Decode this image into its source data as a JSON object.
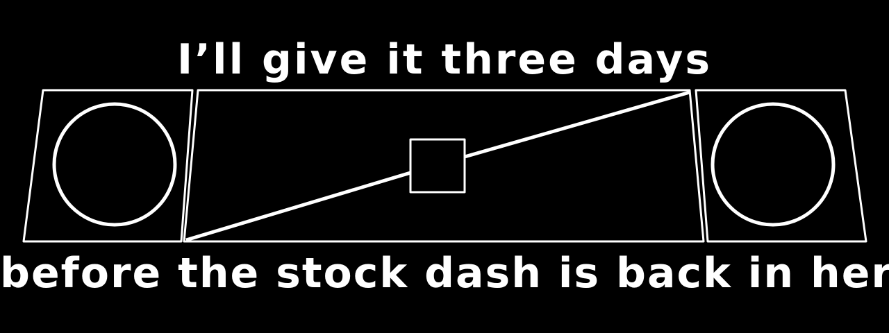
{
  "caption": {
    "top": "I’ll give it three days",
    "bottom": "before the stock dash is back in here"
  },
  "colors": {
    "background": "#000000",
    "line": "#ffffff",
    "text": "#ffffff"
  }
}
